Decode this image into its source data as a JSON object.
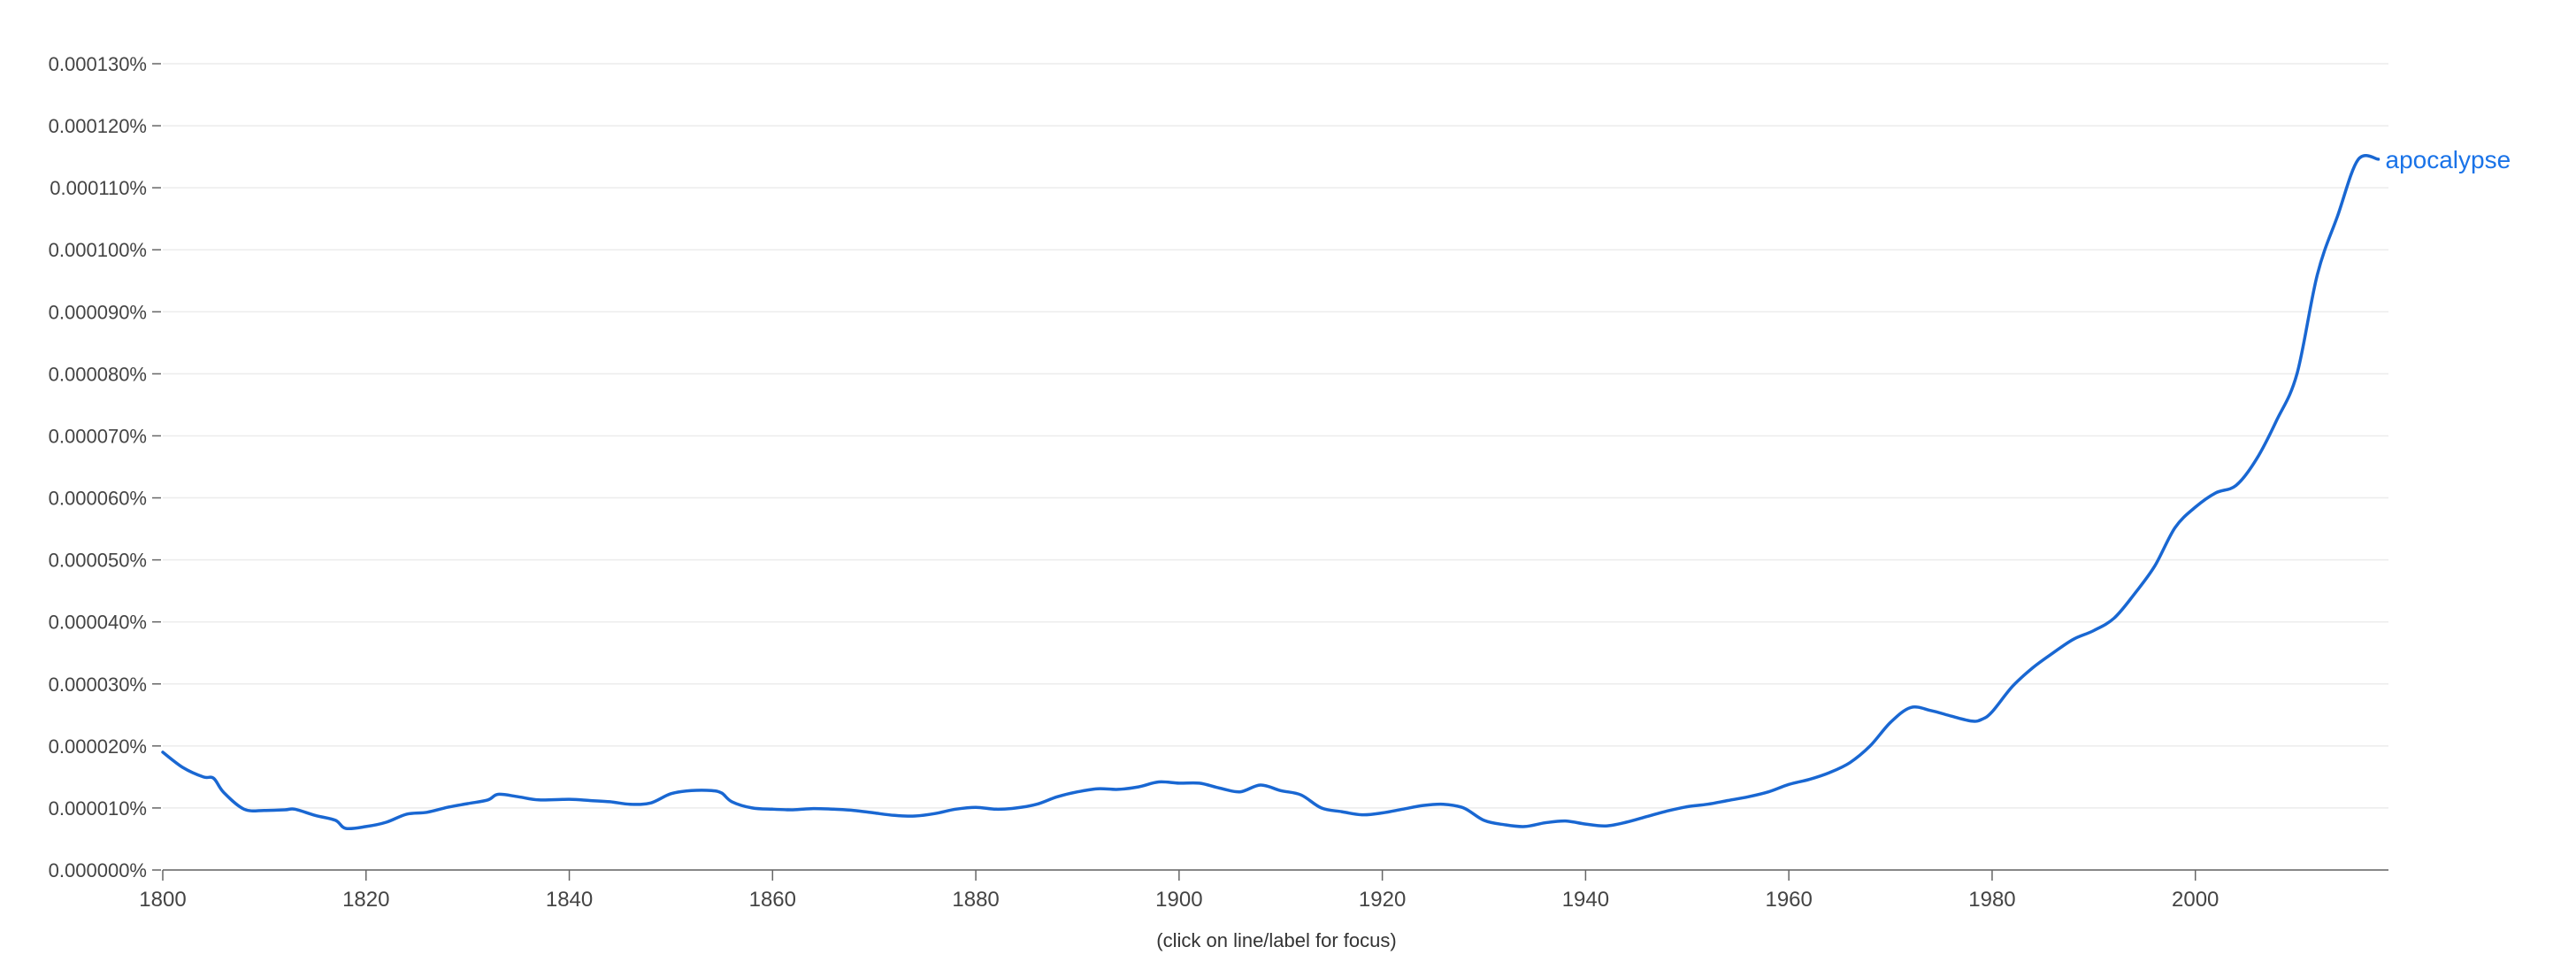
{
  "chart_data": {
    "type": "line",
    "title": "",
    "xlabel": "",
    "ylabel": "",
    "xlim": [
      1800,
      2019
    ],
    "ylim": [
      0,
      0.00013
    ],
    "grid": true,
    "y_ticks": [
      "0.000000%",
      "0.000010%",
      "0.000020%",
      "0.000030%",
      "0.000040%",
      "0.000050%",
      "0.000060%",
      "0.000070%",
      "0.000080%",
      "0.000090%",
      "0.000100%",
      "0.000110%",
      "0.000120%",
      "0.000130%"
    ],
    "x_ticks": [
      "1800",
      "1820",
      "1840",
      "1860",
      "1880",
      "1900",
      "1920",
      "1940",
      "1960",
      "1980",
      "2000"
    ],
    "footnote": "(click on line/label for focus)",
    "series": [
      {
        "name": "apocalypse",
        "color": "#1967d2",
        "x": [
          1800,
          1802,
          1804,
          1805,
          1806,
          1808,
          1810,
          1812,
          1813,
          1815,
          1817,
          1818,
          1820,
          1822,
          1824,
          1826,
          1828,
          1830,
          1832,
          1833,
          1835,
          1837,
          1840,
          1842,
          1844,
          1846,
          1848,
          1850,
          1852,
          1854,
          1855,
          1856,
          1858,
          1860,
          1862,
          1864,
          1866,
          1868,
          1870,
          1872,
          1874,
          1876,
          1878,
          1880,
          1882,
          1884,
          1886,
          1888,
          1890,
          1892,
          1894,
          1896,
          1898,
          1900,
          1902,
          1904,
          1906,
          1908,
          1910,
          1912,
          1914,
          1916,
          1918,
          1920,
          1922,
          1924,
          1926,
          1928,
          1930,
          1932,
          1934,
          1936,
          1938,
          1940,
          1942,
          1944,
          1946,
          1948,
          1950,
          1952,
          1954,
          1956,
          1958,
          1960,
          1962,
          1964,
          1966,
          1968,
          1970,
          1972,
          1974,
          1976,
          1978,
          1979,
          1980,
          1982,
          1984,
          1986,
          1988,
          1990,
          1992,
          1994,
          1996,
          1998,
          2000,
          2002,
          2004,
          2006,
          2008,
          2010,
          2012,
          2014,
          2016,
          2018
        ],
        "y": [
          1.9e-05,
          1.65e-05,
          1.5e-05,
          1.48e-05,
          1.25e-05,
          9.8e-06,
          9.6e-06,
          9.7e-06,
          9.8e-06,
          8.8e-06,
          8e-06,
          6.7e-06,
          7e-06,
          7.7e-06,
          9e-06,
          9.3e-06,
          1.01e-05,
          1.07e-05,
          1.13e-05,
          1.22e-05,
          1.18e-05,
          1.13e-05,
          1.14e-05,
          1.12e-05,
          1.1e-05,
          1.06e-05,
          1.08e-05,
          1.23e-05,
          1.28e-05,
          1.28e-05,
          1.24e-05,
          1.1e-05,
          1e-05,
          9.8e-06,
          9.7e-06,
          9.9e-06,
          9.8e-06,
          9.6e-06,
          9.2e-06,
          8.8e-06,
          8.7e-06,
          9.1e-06,
          9.8e-06,
          1.01e-05,
          9.8e-06,
          1e-05,
          1.06e-05,
          1.18e-05,
          1.26e-05,
          1.31e-05,
          1.3e-05,
          1.34e-05,
          1.42e-05,
          1.4e-05,
          1.4e-05,
          1.32e-05,
          1.26e-05,
          1.37e-05,
          1.28e-05,
          1.21e-05,
          1e-05,
          9.4e-06,
          8.9e-06,
          9.2e-06,
          9.8e-06,
          1.04e-05,
          1.06e-05,
          1e-05,
          8e-06,
          7.3e-06,
          7e-06,
          7.6e-06,
          7.9e-06,
          7.4e-06,
          7.1e-06,
          7.7e-06,
          8.6e-06,
          9.5e-06,
          1.02e-05,
          1.06e-05,
          1.12e-05,
          1.18e-05,
          1.26e-05,
          1.38e-05,
          1.46e-05,
          1.57e-05,
          1.73e-05,
          2e-05,
          2.38e-05,
          2.62e-05,
          2.57e-05,
          2.48e-05,
          2.4e-05,
          2.43e-05,
          2.55e-05,
          2.96e-05,
          3.26e-05,
          3.5e-05,
          3.72e-05,
          3.86e-05,
          4.06e-05,
          4.45e-05,
          4.9e-05,
          5.52e-05,
          5.85e-05,
          6.08e-05,
          6.2e-05,
          6.62e-05,
          7.25e-05,
          8e-05,
          9.6e-05,
          0.0001055,
          0.0001145,
          0.0001146
        ]
      }
    ]
  }
}
